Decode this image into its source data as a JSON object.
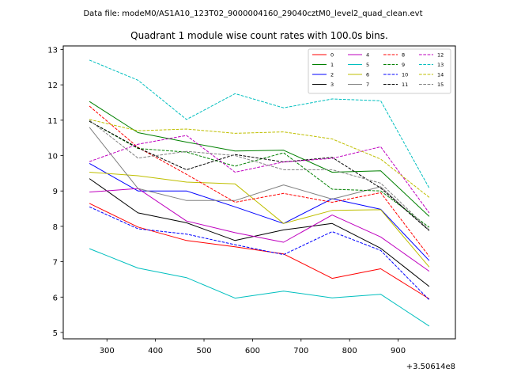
{
  "figure": {
    "suptitle": "Data file: modeM0/AS1A10_123T02_9000004160_29040cztM0_level2_quad_clean.evt"
  },
  "chart_data": {
    "type": "line",
    "title": "Quadrant 1 module wise count rates with 100.0s bins.",
    "xlabel": "",
    "ylabel": "",
    "x_offset_label": "+3.50614e8",
    "x": [
      264,
      364,
      464,
      564,
      664,
      764,
      864,
      964
    ],
    "xlim": [
      210,
      1018
    ],
    "ylim": [
      4.82,
      13.1
    ],
    "xticks": [
      300,
      400,
      500,
      600,
      700,
      800,
      900
    ],
    "xtick_labels": [
      "300",
      "400",
      "500",
      "600",
      "700",
      "800",
      "900"
    ],
    "yticks": [
      5,
      6,
      7,
      8,
      9,
      10,
      11,
      12,
      13
    ],
    "ytick_labels": [
      "5",
      "6",
      "7",
      "8",
      "9",
      "10",
      "11",
      "12",
      "13"
    ],
    "grid": false,
    "legend_position": "top-right",
    "legend_columns": 4,
    "series": [
      {
        "name": "0",
        "color": "#ff0000",
        "style": "solid",
        "values": [
          8.65,
          7.98,
          7.6,
          7.42,
          7.22,
          6.53,
          6.8,
          5.95
        ]
      },
      {
        "name": "1",
        "color": "#008000",
        "style": "solid",
        "values": [
          11.53,
          10.65,
          10.38,
          10.13,
          10.15,
          9.53,
          9.57,
          8.28
        ]
      },
      {
        "name": "2",
        "color": "#0000ff",
        "style": "solid",
        "values": [
          9.78,
          9.0,
          9.0,
          8.55,
          8.08,
          8.78,
          8.48,
          7.03
        ]
      },
      {
        "name": "3",
        "color": "#000000",
        "style": "solid",
        "values": [
          9.35,
          8.38,
          8.1,
          7.6,
          7.9,
          8.08,
          7.38,
          6.3
        ]
      },
      {
        "name": "4",
        "color": "#bf00bf",
        "style": "solid",
        "values": [
          8.97,
          9.07,
          8.15,
          7.82,
          7.55,
          8.32,
          7.7,
          6.73
        ]
      },
      {
        "name": "5",
        "color": "#00bfbf",
        "style": "solid",
        "values": [
          7.37,
          6.82,
          6.55,
          5.97,
          6.17,
          5.98,
          6.08,
          5.18
        ]
      },
      {
        "name": "6",
        "color": "#bfbf00",
        "style": "solid",
        "values": [
          9.53,
          9.43,
          9.25,
          9.2,
          8.08,
          8.45,
          8.47,
          6.85
        ]
      },
      {
        "name": "7",
        "color": "#808080",
        "style": "solid",
        "values": [
          10.8,
          9.07,
          8.73,
          8.73,
          9.17,
          8.77,
          9.12,
          7.88
        ]
      },
      {
        "name": "8",
        "color": "#ff0000",
        "style": "dashed",
        "values": [
          11.4,
          10.23,
          9.47,
          8.68,
          8.93,
          8.68,
          8.95,
          7.15
        ]
      },
      {
        "name": "9",
        "color": "#008000",
        "style": "dashed",
        "values": [
          10.97,
          10.2,
          10.1,
          9.7,
          10.08,
          9.05,
          9.0,
          7.97
        ]
      },
      {
        "name": "10",
        "color": "#0000ff",
        "style": "dashed",
        "values": [
          8.55,
          7.93,
          7.78,
          7.48,
          7.2,
          7.85,
          7.32,
          5.92
        ]
      },
      {
        "name": "11",
        "color": "#000000",
        "style": "dashed",
        "values": [
          10.97,
          10.22,
          9.6,
          10.03,
          9.82,
          9.95,
          9.08,
          7.88
        ]
      },
      {
        "name": "12",
        "color": "#bf00bf",
        "style": "dashed",
        "values": [
          9.83,
          10.32,
          10.57,
          9.53,
          9.82,
          9.92,
          10.25,
          8.38
        ]
      },
      {
        "name": "13",
        "color": "#00bfbf",
        "style": "dashed",
        "values": [
          12.7,
          12.13,
          11.02,
          11.75,
          11.35,
          11.6,
          11.55,
          9.08
        ]
      },
      {
        "name": "14",
        "color": "#bfbf00",
        "style": "dashed",
        "values": [
          11.02,
          10.7,
          10.75,
          10.63,
          10.67,
          10.47,
          9.9,
          8.82
        ]
      },
      {
        "name": "15",
        "color": "#808080",
        "style": "dashed",
        "values": [
          11.0,
          9.93,
          10.12,
          10.0,
          9.6,
          9.6,
          9.22,
          7.9
        ]
      }
    ]
  }
}
